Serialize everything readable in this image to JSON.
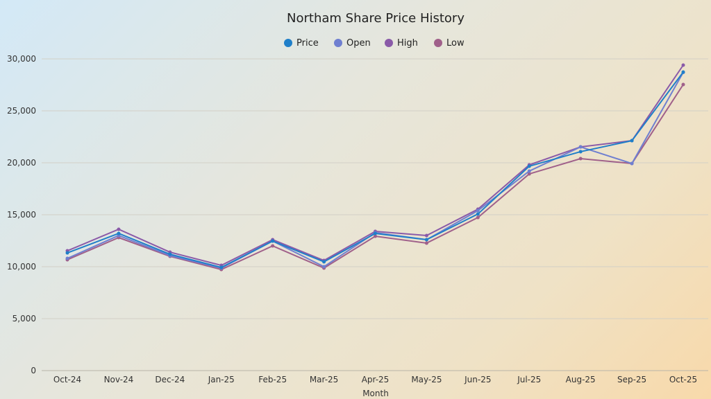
{
  "chart_data": {
    "type": "line",
    "title": "Northam Share Price History",
    "xlabel": "Month",
    "ylabel": "",
    "ylim": [
      0,
      30000
    ],
    "yticks": [
      0,
      5000,
      10000,
      15000,
      20000,
      25000,
      30000
    ],
    "ytick_labels": [
      "0",
      "5,000",
      "10,000",
      "15,000",
      "20,000",
      "25,000",
      "30,000"
    ],
    "grid": true,
    "legend_position": "top",
    "categories": [
      "Oct-24",
      "Nov-24",
      "Dec-24",
      "Jan-25",
      "Feb-25",
      "Mar-25",
      "Apr-25",
      "May-25",
      "Jun-25",
      "Jul-25",
      "Aug-25",
      "Sep-25",
      "Oct-25"
    ],
    "series": [
      {
        "name": "Price",
        "color": "#1f7fc9",
        "values": [
          11330,
          13200,
          11200,
          9930,
          12470,
          10470,
          13200,
          12600,
          15070,
          19670,
          21070,
          22130,
          28730
        ]
      },
      {
        "name": "Open",
        "color": "#6f7fd0",
        "values": [
          10800,
          13000,
          11070,
          9870,
          12470,
          10000,
          13270,
          12600,
          15400,
          19200,
          21530,
          19930,
          28700
        ]
      },
      {
        "name": "High",
        "color": "#8a5aa8",
        "values": [
          11530,
          13600,
          11400,
          10130,
          12600,
          10600,
          13400,
          13000,
          15530,
          19800,
          21530,
          22130,
          29400
        ]
      },
      {
        "name": "Low",
        "color": "#a0608a",
        "values": [
          10670,
          12800,
          11000,
          9730,
          12000,
          9870,
          12930,
          12270,
          14730,
          18930,
          20400,
          19930,
          27530
        ]
      }
    ]
  }
}
